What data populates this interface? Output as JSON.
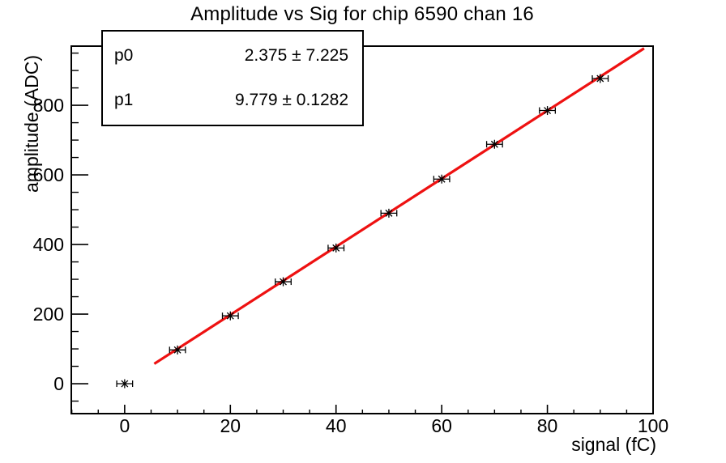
{
  "stats_box": {
    "rows": [
      {
        "label": "p0",
        "value": "2.375 ± 7.225"
      },
      {
        "label": "p1",
        "value": "9.779 ± 0.1282"
      }
    ]
  },
  "chart_data": {
    "type": "scatter",
    "title": "Amplitude vs Sig for chip 6590 chan 16",
    "xlabel": "signal (fC)",
    "ylabel": "amplitude (ADC)",
    "xlim": [
      -10.1,
      100
    ],
    "ylim": [
      -86,
      970
    ],
    "x": [
      0,
      10,
      20,
      30,
      40,
      50,
      60,
      70,
      80,
      90
    ],
    "y": [
      0,
      97,
      195,
      293,
      390,
      490,
      588,
      688,
      785,
      877
    ],
    "x_err": 1.5,
    "x_ticks": [
      0,
      20,
      40,
      60,
      80,
      100
    ],
    "x_minor_step": 5,
    "y_ticks": [
      0,
      200,
      400,
      600,
      800
    ],
    "y_minor_step": 50,
    "grid": false,
    "marker": "asterisk-with-error-caps",
    "marker_color": "#000000",
    "fit": {
      "p0": 2.375,
      "p0_err": 7.225,
      "p1": 9.779,
      "p1_err": 0.1282,
      "x_start": 5.6,
      "x_end": 98.3,
      "color": "#ee1111"
    }
  }
}
